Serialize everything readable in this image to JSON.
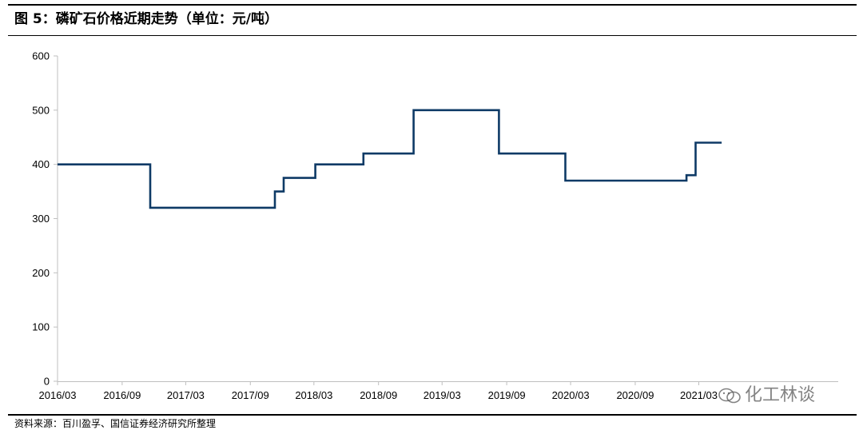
{
  "header": {
    "title": "图 5：磷矿石价格近期走势（单位：元/吨）"
  },
  "footer": {
    "source": "资料来源：百川盈孚、国信证券经济研究所整理"
  },
  "watermark": {
    "text": "化工林谈"
  },
  "chart_data": {
    "type": "line",
    "title": "磷矿石价格近期走势（单位：元/吨）",
    "xlabel": "",
    "ylabel": "",
    "ylim": [
      0,
      600
    ],
    "yticks": [
      0,
      100,
      200,
      300,
      400,
      500,
      600
    ],
    "xlim": [
      "2016-03",
      "2021-03"
    ],
    "xticks": [
      "2016/03",
      "2016/09",
      "2017/03",
      "2017/09",
      "2018/03",
      "2018/09",
      "2019/03",
      "2019/09",
      "2020/03",
      "2020/09",
      "2021/03"
    ],
    "grid": false,
    "line_color": "#0e3a66",
    "series": [
      {
        "name": "",
        "step": true,
        "points": [
          [
            "2016-03-01",
            400
          ],
          [
            "2016-11-20",
            400
          ],
          [
            "2016-11-20",
            320
          ],
          [
            "2017-11-10",
            320
          ],
          [
            "2017-11-10",
            350
          ],
          [
            "2017-12-05",
            350
          ],
          [
            "2017-12-05",
            375
          ],
          [
            "2018-03-05",
            375
          ],
          [
            "2018-03-05",
            400
          ],
          [
            "2018-07-20",
            400
          ],
          [
            "2018-07-20",
            420
          ],
          [
            "2018-12-10",
            420
          ],
          [
            "2018-12-10",
            500
          ],
          [
            "2019-08-10",
            500
          ],
          [
            "2019-08-10",
            420
          ],
          [
            "2020-02-15",
            420
          ],
          [
            "2020-02-15",
            370
          ],
          [
            "2021-01-25",
            370
          ],
          [
            "2021-01-25",
            380
          ],
          [
            "2021-02-20",
            380
          ],
          [
            "2021-02-20",
            440
          ],
          [
            "2021-05-05",
            440
          ]
        ]
      }
    ]
  }
}
